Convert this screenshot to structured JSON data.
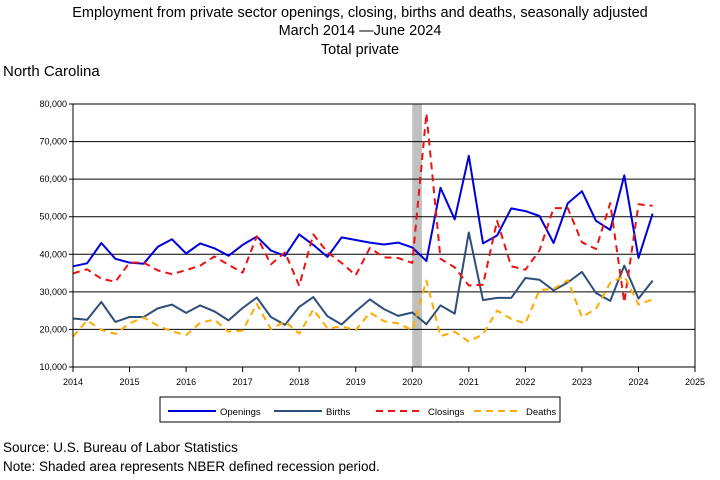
{
  "header": {
    "title_line1": "Employment from private sector openings, closing, births and deaths, seasonally adjusted",
    "title_line2": "March 2014 —June 2024",
    "title_line3": "Total private"
  },
  "region": "North Carolina",
  "footer": {
    "source": "Source: U.S. Bureau of Labor Statistics",
    "note": "Note: Shaded area represents NBER defined recession period."
  },
  "chart_data": {
    "type": "line",
    "x_unit": "quarter",
    "xlim": [
      2014,
      2025
    ],
    "ylim": [
      10000,
      80000
    ],
    "x_ticks": [
      2014,
      2015,
      2016,
      2017,
      2018,
      2019,
      2020,
      2021,
      2022,
      2023,
      2024,
      2025
    ],
    "y_ticks": [
      10000,
      20000,
      30000,
      40000,
      50000,
      60000,
      70000,
      80000
    ],
    "y_tick_labels": [
      "10,000",
      "20,000",
      "30,000",
      "40,000",
      "50,000",
      "60,000",
      "70,000",
      "80,000"
    ],
    "grid": "horizontal",
    "legend_position": "bottom",
    "recession": {
      "start": 2020.0,
      "end": 2020.17,
      "color": "#c0c0c0"
    },
    "x": [
      2014.0,
      2014.25,
      2014.5,
      2014.75,
      2015.0,
      2015.25,
      2015.5,
      2015.75,
      2016.0,
      2016.25,
      2016.5,
      2016.75,
      2017.0,
      2017.25,
      2017.5,
      2017.75,
      2018.0,
      2018.25,
      2018.5,
      2018.75,
      2019.0,
      2019.25,
      2019.5,
      2019.75,
      2020.0,
      2020.25,
      2020.5,
      2020.75,
      2021.0,
      2021.25,
      2021.5,
      2021.75,
      2022.0,
      2022.25,
      2022.5,
      2022.75,
      2023.0,
      2023.25,
      2023.5,
      2023.75,
      2024.0,
      2024.25
    ],
    "series": [
      {
        "name": "Openings",
        "color": "#0000dd",
        "dash": "solid",
        "width": 2,
        "values": [
          36800,
          37600,
          43000,
          38800,
          37800,
          37500,
          42000,
          44000,
          40200,
          42900,
          41600,
          39600,
          42500,
          44700,
          41000,
          39600,
          45300,
          42500,
          39300,
          44500,
          43800,
          43100,
          42600,
          43100,
          41800,
          38200,
          57700,
          49300,
          66200,
          42900,
          45000,
          52200,
          51500,
          50200,
          43000,
          53600,
          56800,
          48900,
          46500,
          61000,
          39000,
          50800
        ]
      },
      {
        "name": "Births",
        "color": "#2e4f7a",
        "dash": "solid",
        "width": 2,
        "values": [
          22900,
          22600,
          27300,
          22000,
          23300,
          23300,
          25600,
          26600,
          24400,
          26400,
          24800,
          22400,
          25700,
          28500,
          23300,
          21200,
          26000,
          28600,
          23500,
          21300,
          24800,
          28000,
          25400,
          23600,
          24500,
          21400,
          26400,
          24200,
          45800,
          27800,
          28400,
          28400,
          33700,
          33200,
          30400,
          32500,
          35300,
          29700,
          27600,
          37000,
          28200,
          33000
        ]
      },
      {
        "name": "Closings",
        "color": "#ee1111",
        "dash": "dashed",
        "width": 2,
        "values": [
          34900,
          36000,
          33500,
          32700,
          37800,
          37800,
          35700,
          34700,
          35800,
          37000,
          39400,
          37200,
          35100,
          44800,
          37300,
          40500,
          31600,
          45300,
          40500,
          37700,
          34400,
          41700,
          39200,
          39000,
          37700,
          77500,
          38800,
          36500,
          31700,
          31900,
          48900,
          36800,
          35900,
          41000,
          52300,
          52300,
          43200,
          41400,
          53600,
          27200,
          53300,
          52900
        ]
      },
      {
        "name": "Deaths",
        "color": "#ffaa00",
        "dash": "dashed",
        "width": 2,
        "values": [
          18100,
          22400,
          19900,
          18800,
          21600,
          23200,
          21000,
          19500,
          18500,
          21800,
          22600,
          19400,
          19700,
          26800,
          20100,
          22100,
          18900,
          25300,
          20300,
          20800,
          19800,
          24500,
          22200,
          21600,
          19800,
          33000,
          18200,
          19400,
          16800,
          18700,
          25000,
          22800,
          21600,
          30500,
          30800,
          33100,
          23300,
          25500,
          32400,
          34200,
          26600,
          28000
        ]
      }
    ]
  }
}
